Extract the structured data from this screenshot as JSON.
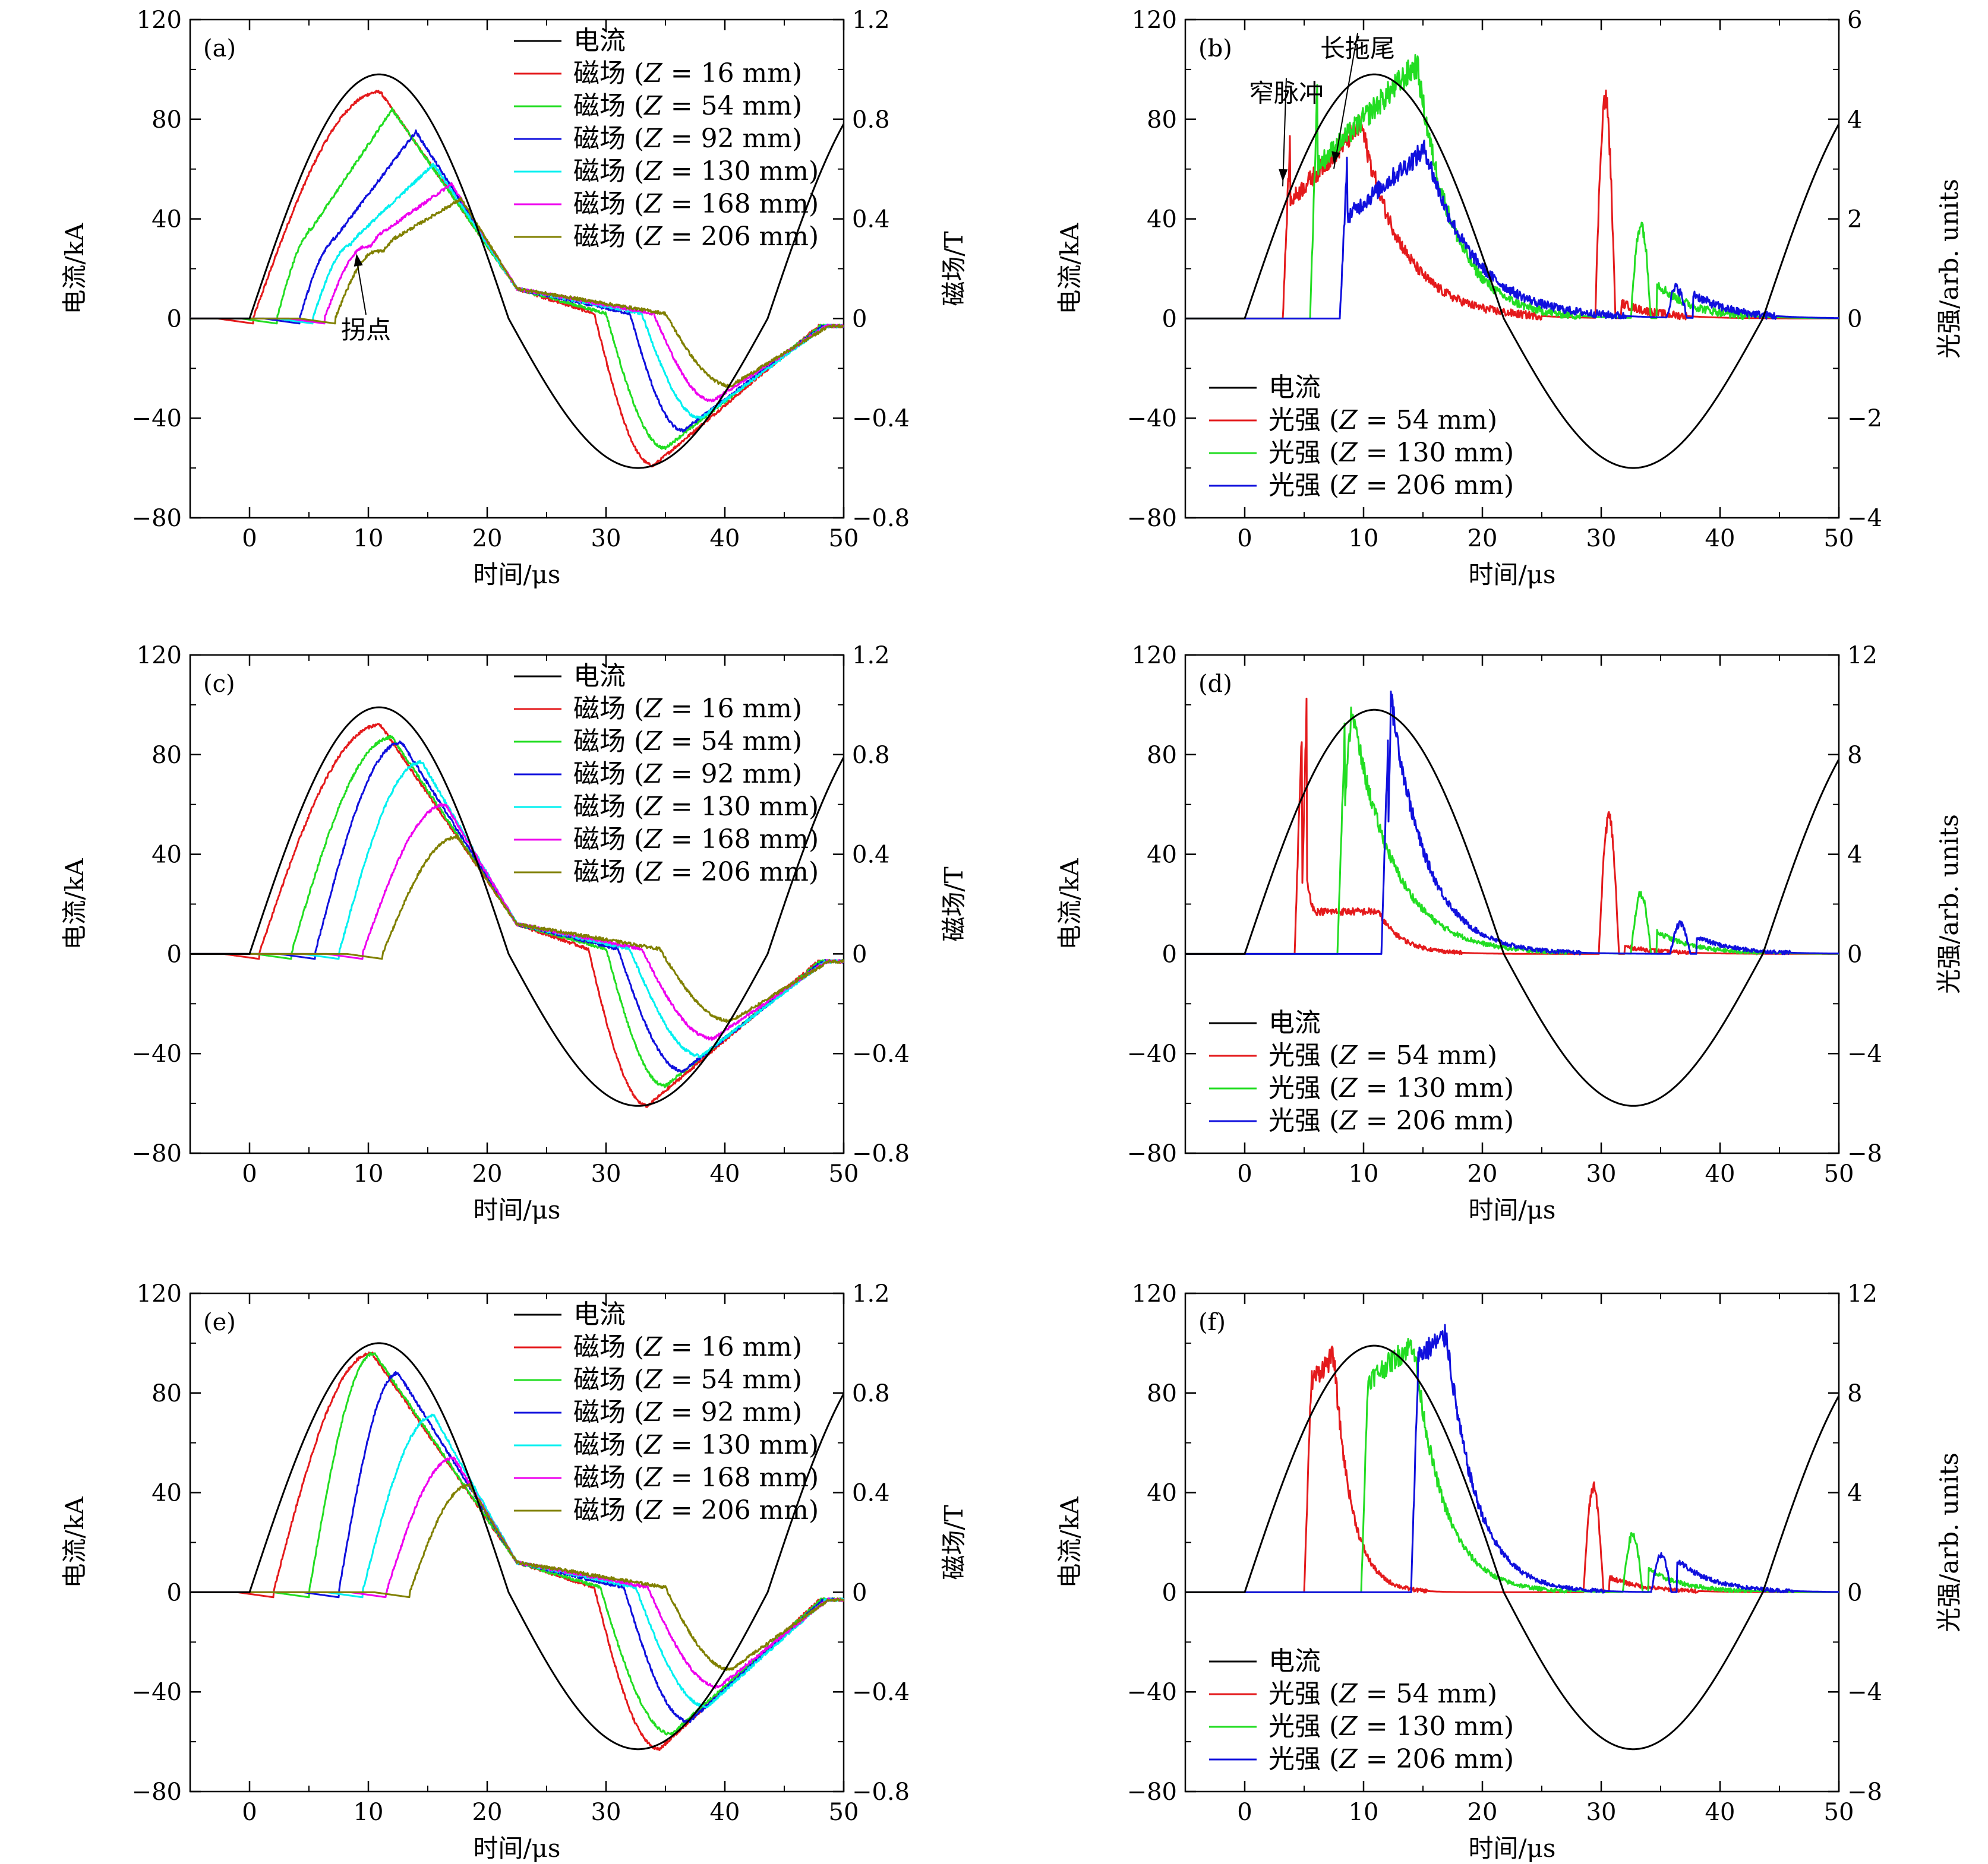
{
  "figure": {
    "xlabel": "时间/μs",
    "ylabel_left": "电流/kA",
    "ylabel_right_field": "磁场/T",
    "ylabel_right_light": "光强/arb. units"
  },
  "chart_data": [
    {
      "type": "line",
      "panel_label": "(a)",
      "xlim": [
        -5,
        50
      ],
      "xticks": [
        0,
        10,
        20,
        30,
        40,
        50
      ],
      "ylim": [
        -80,
        120
      ],
      "yticks": [
        -80,
        -40,
        0,
        40,
        80,
        120
      ],
      "ylim_right": [
        -0.8,
        1.2
      ],
      "yticks_right": [
        -0.8,
        -0.4,
        0,
        0.4,
        0.8,
        1.2
      ],
      "ylabel_right": "磁场/T",
      "legend": "top-right",
      "current": {
        "name": "电流",
        "color": "#000000",
        "amp": 98,
        "neg_peak": -60
      },
      "series": [
        {
          "name": "磁场 (Z = 16 mm)",
          "prefix": "磁场",
          "z": "16",
          "color": "#e41a1c",
          "t0": 0.3,
          "tp": 11,
          "peak": 0.91,
          "dip": -0.59,
          "td": 34,
          "tr": 29,
          "knee": null
        },
        {
          "name": "磁场 (Z = 54 mm)",
          "prefix": "磁场",
          "z": "54",
          "color": "#22dd22",
          "t0": 2.3,
          "tp": 12,
          "peak": 0.84,
          "dip": -0.52,
          "td": 35,
          "tr": 30,
          "knee": 0.36
        },
        {
          "name": "磁场 (Z = 92 mm)",
          "prefix": "磁场",
          "z": "92",
          "color": "#1010dd",
          "t0": 4.2,
          "tp": 14,
          "peak": 0.75,
          "dip": -0.45,
          "td": 36.5,
          "tr": 32,
          "knee": 0.32
        },
        {
          "name": "磁场 (Z = 130 mm)",
          "prefix": "磁场",
          "z": "130",
          "color": "#00f0f0",
          "t0": 5.3,
          "tp": 15.5,
          "peak": 0.62,
          "dip": -0.4,
          "td": 38,
          "tr": 33,
          "knee": 0.3
        },
        {
          "name": "磁场 (Z = 168 mm)",
          "prefix": "磁场",
          "z": "168",
          "color": "#ee00ee",
          "t0": 6.3,
          "tp": 17,
          "peak": 0.54,
          "dip": -0.33,
          "td": 39,
          "tr": 34,
          "knee": 0.29
        },
        {
          "name": "磁场 (Z = 206 mm)",
          "prefix": "磁场",
          "z": "206",
          "color": "#808000",
          "t0": 7.2,
          "tp": 17.8,
          "peak": 0.48,
          "dip": -0.27,
          "td": 40.5,
          "tr": 35,
          "knee": 0.27
        }
      ],
      "annotations": [
        {
          "text": "拐点",
          "x": 9.8,
          "y": -8,
          "ax": 9.0,
          "ay": 26
        }
      ]
    },
    {
      "type": "line",
      "panel_label": "(b)",
      "xlim": [
        -5,
        50
      ],
      "xticks": [
        0,
        10,
        20,
        30,
        40,
        50
      ],
      "ylim": [
        -80,
        120
      ],
      "yticks": [
        -80,
        -40,
        0,
        40,
        80,
        120
      ],
      "ylim_right": [
        -4,
        6
      ],
      "yticks_right": [
        -4,
        -2,
        0,
        2,
        4,
        6
      ],
      "ylabel_right": "光强/arb. units",
      "legend": "bottom-left",
      "current": {
        "name": "电流",
        "color": "#000000",
        "amp": 98,
        "neg_peak": -60
      },
      "series": [
        {
          "name": "光强 (Z = 54 mm)",
          "prefix": "光强",
          "z": "54",
          "color": "#e41a1c",
          "t0": 3.2,
          "tp": 9.8,
          "peak": 3.9,
          "plateau": null,
          "fall": 3.5,
          "tail": 0.0,
          "second_t0": 29.5,
          "second_peak": 4.4,
          "second_tail": 0.3
        },
        {
          "name": "光强 (Z = 130 mm)",
          "prefix": "光强",
          "z": "130",
          "color": "#22dd22",
          "t0": 5.5,
          "tp": 14.5,
          "peak": 5.1,
          "plateau": null,
          "fall": 3.0,
          "tail": 0.0,
          "second_t0": 32.5,
          "second_peak": 1.9,
          "second_tail": 0.7
        },
        {
          "name": "光强 (Z = 206 mm)",
          "prefix": "光强",
          "z": "206",
          "color": "#1010dd",
          "t0": 8.0,
          "tp": 15.2,
          "peak": 3.4,
          "plateau": null,
          "fall": 4.0,
          "tail": 0.0,
          "second_t0": 35.5,
          "second_peak": 0.6,
          "second_tail": 0.5
        }
      ],
      "annotations": [
        {
          "text": "窄脉冲",
          "x": 3.5,
          "y": 87,
          "ax": 3.2,
          "ay": 55
        },
        {
          "text": "长拖尾",
          "x": 9.5,
          "y": 105,
          "ax": 7.5,
          "ay": 62
        }
      ]
    },
    {
      "type": "line",
      "panel_label": "(c)",
      "xlim": [
        -5,
        50
      ],
      "xticks": [
        0,
        10,
        20,
        30,
        40,
        50
      ],
      "ylim": [
        -80,
        120
      ],
      "yticks": [
        -80,
        -40,
        0,
        40,
        80,
        120
      ],
      "ylim_right": [
        -0.8,
        1.2
      ],
      "yticks_right": [
        -0.8,
        -0.4,
        0,
        0.4,
        0.8,
        1.2
      ],
      "ylabel_right": "磁场/T",
      "legend": "top-right",
      "current": {
        "name": "电流",
        "color": "#000000",
        "amp": 99,
        "neg_peak": -61
      },
      "series": [
        {
          "name": "磁场 (Z = 16 mm)",
          "prefix": "磁场",
          "z": "16",
          "color": "#e41a1c",
          "t0": 0.8,
          "tp": 11,
          "peak": 0.92,
          "dip": -0.61,
          "td": 33.5,
          "tr": 28.5,
          "knee": null
        },
        {
          "name": "磁场 (Z = 54 mm)",
          "prefix": "磁场",
          "z": "54",
          "color": "#22dd22",
          "t0": 3.5,
          "tp": 12,
          "peak": 0.87,
          "dip": -0.53,
          "td": 35,
          "tr": 30,
          "knee": null
        },
        {
          "name": "磁场 (Z = 92 mm)",
          "prefix": "磁场",
          "z": "92",
          "color": "#1010dd",
          "t0": 5.5,
          "tp": 12.8,
          "peak": 0.85,
          "dip": -0.47,
          "td": 36.5,
          "tr": 31,
          "knee": null
        },
        {
          "name": "磁场 (Z = 130 mm)",
          "prefix": "磁场",
          "z": "130",
          "color": "#00f0f0",
          "t0": 7.5,
          "tp": 14.5,
          "peak": 0.77,
          "dip": -0.41,
          "td": 38,
          "tr": 32,
          "knee": null
        },
        {
          "name": "磁场 (Z = 168 mm)",
          "prefix": "磁场",
          "z": "168",
          "color": "#ee00ee",
          "t0": 9.5,
          "tp": 16.5,
          "peak": 0.6,
          "dip": -0.34,
          "td": 39,
          "tr": 33,
          "knee": null
        },
        {
          "name": "磁场 (Z = 206 mm)",
          "prefix": "磁场",
          "z": "206",
          "color": "#808000",
          "t0": 11.2,
          "tp": 17.5,
          "peak": 0.47,
          "dip": -0.27,
          "td": 40.5,
          "tr": 34.5,
          "knee": null
        }
      ],
      "annotations": []
    },
    {
      "type": "line",
      "panel_label": "(d)",
      "xlim": [
        -5,
        50
      ],
      "xticks": [
        0,
        10,
        20,
        30,
        40,
        50
      ],
      "ylim": [
        -80,
        120
      ],
      "yticks": [
        -80,
        -40,
        0,
        40,
        80,
        120
      ],
      "ylim_right": [
        -8,
        12
      ],
      "yticks_right": [
        -8,
        -4,
        0,
        4,
        8,
        12
      ],
      "ylabel_right": "光强/arb. units",
      "legend": "bottom-left",
      "current": {
        "name": "电流",
        "color": "#000000",
        "amp": 98,
        "neg_peak": -61
      },
      "series": [
        {
          "name": "光强 (Z = 54 mm)",
          "prefix": "光强",
          "z": "54",
          "color": "#e41a1c",
          "t0": 4.2,
          "tp": 5.2,
          "peak": 9.9,
          "plateau": 1.7,
          "fall": 1.2,
          "tail": 0.0,
          "second_t0": 29.8,
          "second_peak": 5.5,
          "second_tail": 0.3
        },
        {
          "name": "光强 (Z = 130 mm)",
          "prefix": "光强",
          "z": "130",
          "color": "#22dd22",
          "t0": 7.8,
          "tp": 9.0,
          "peak": 9.9,
          "plateau": null,
          "fall": 3.5,
          "tail": 0.0,
          "second_t0": 32.5,
          "second_peak": 2.4,
          "second_tail": 0.9
        },
        {
          "name": "光强 (Z = 206 mm)",
          "prefix": "光强",
          "z": "206",
          "color": "#1010dd",
          "t0": 11.5,
          "tp": 12.3,
          "peak": 10.3,
          "plateau": 5.5,
          "fall": 3.0,
          "tail": 0.0,
          "second_t0": 35.8,
          "second_peak": 1.2,
          "second_tail": 0.7
        }
      ],
      "annotations": []
    },
    {
      "type": "line",
      "panel_label": "(e)",
      "xlim": [
        -5,
        50
      ],
      "xticks": [
        0,
        10,
        20,
        30,
        40,
        50
      ],
      "ylim": [
        -80,
        120
      ],
      "yticks": [
        -80,
        -40,
        0,
        40,
        80,
        120
      ],
      "ylim_right": [
        -0.8,
        1.2
      ],
      "yticks_right": [
        -0.8,
        -0.4,
        0,
        0.4,
        0.8,
        1.2
      ],
      "ylabel_right": "磁场/T",
      "legend": "top-right",
      "current": {
        "name": "电流",
        "color": "#000000",
        "amp": 100,
        "neg_peak": -63
      },
      "series": [
        {
          "name": "磁场 (Z = 16 mm)",
          "prefix": "磁场",
          "z": "16",
          "color": "#e41a1c",
          "t0": 2.0,
          "tp": 10.3,
          "peak": 0.96,
          "dip": -0.63,
          "td": 34.5,
          "tr": 29,
          "knee": null
        },
        {
          "name": "磁场 (Z = 54 mm)",
          "prefix": "磁场",
          "z": "54",
          "color": "#22dd22",
          "t0": 5.0,
          "tp": 10.5,
          "peak": 0.96,
          "dip": -0.57,
          "td": 35.5,
          "tr": 29.5,
          "knee": null
        },
        {
          "name": "磁场 (Z = 92 mm)",
          "prefix": "磁场",
          "z": "92",
          "color": "#1010dd",
          "t0": 7.5,
          "tp": 12.5,
          "peak": 0.88,
          "dip": -0.52,
          "td": 37,
          "tr": 31.5,
          "knee": null
        },
        {
          "name": "磁场 (Z = 130 mm)",
          "prefix": "磁场",
          "z": "130",
          "color": "#00f0f0",
          "t0": 9.5,
          "tp": 15.5,
          "peak": 0.71,
          "dip": -0.46,
          "td": 38.5,
          "tr": 32.5,
          "knee": null
        },
        {
          "name": "磁场 (Z = 168 mm)",
          "prefix": "磁场",
          "z": "168",
          "color": "#ee00ee",
          "t0": 11.5,
          "tp": 17.2,
          "peak": 0.54,
          "dip": -0.38,
          "td": 39.5,
          "tr": 33.5,
          "knee": null
        },
        {
          "name": "磁场 (Z = 206 mm)",
          "prefix": "磁场",
          "z": "206",
          "color": "#808000",
          "t0": 13.5,
          "tp": 18.5,
          "peak": 0.43,
          "dip": -0.31,
          "td": 40.5,
          "tr": 35,
          "knee": null
        }
      ],
      "annotations": []
    },
    {
      "type": "line",
      "panel_label": "(f)",
      "xlim": [
        -5,
        50
      ],
      "xticks": [
        0,
        10,
        20,
        30,
        40,
        50
      ],
      "ylim": [
        -80,
        120
      ],
      "yticks": [
        -80,
        -40,
        0,
        40,
        80,
        120
      ],
      "ylim_right": [
        -8,
        12
      ],
      "yticks_right": [
        -8,
        -4,
        0,
        4,
        8,
        12
      ],
      "ylabel_right": "光强/arb. units",
      "legend": "bottom-left",
      "current": {
        "name": "电流",
        "color": "#000000",
        "amp": 99,
        "neg_peak": -63
      },
      "series": [
        {
          "name": "光强 (Z = 54 mm)",
          "prefix": "光强",
          "z": "54",
          "color": "#e41a1c",
          "t0": 5.0,
          "tp": 7.5,
          "peak": 9.5,
          "plateau": 8.5,
          "fall": 1.5,
          "tail": 0.0,
          "second_t0": 28.5,
          "second_peak": 4.2,
          "second_tail": 0.6
        },
        {
          "name": "光强 (Z = 130 mm)",
          "prefix": "光强",
          "z": "130",
          "color": "#22dd22",
          "t0": 9.8,
          "tp": 14.2,
          "peak": 10.0,
          "plateau": 8.5,
          "fall": 2.5,
          "tail": 0.0,
          "second_t0": 31.8,
          "second_peak": 2.3,
          "second_tail": 0.9
        },
        {
          "name": "光强 (Z = 206 mm)",
          "prefix": "光强",
          "z": "206",
          "color": "#1010dd",
          "t0": 14.0,
          "tp": 17.0,
          "peak": 10.3,
          "plateau": 9.5,
          "fall": 2.5,
          "tail": 0.0,
          "second_t0": 34.2,
          "second_peak": 1.5,
          "second_tail": 1.3
        }
      ],
      "annotations": []
    }
  ]
}
